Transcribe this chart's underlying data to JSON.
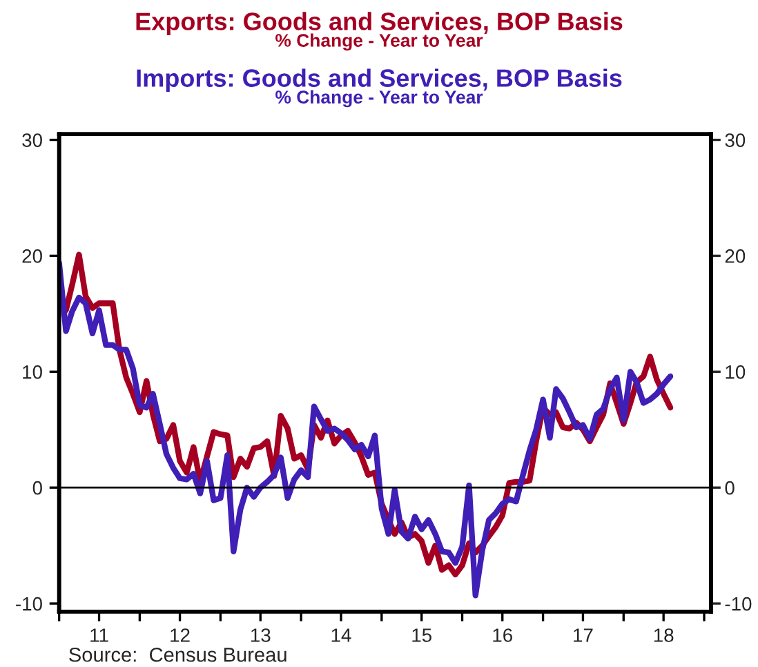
{
  "chart_data": {
    "type": "line",
    "annotations": [
      "% Change - Year to Year",
      "% Change - Year to Year",
      "Source:  Census Bureau"
    ],
    "x": [
      "2011-01",
      "2011-02",
      "2011-03",
      "2011-04",
      "2011-05",
      "2011-06",
      "2011-07",
      "2011-08",
      "2011-09",
      "2011-10",
      "2011-11",
      "2011-12",
      "2012-01",
      "2012-02",
      "2012-03",
      "2012-04",
      "2012-05",
      "2012-06",
      "2012-07",
      "2012-08",
      "2012-09",
      "2012-10",
      "2012-11",
      "2012-12",
      "2013-01",
      "2013-02",
      "2013-03",
      "2013-04",
      "2013-05",
      "2013-06",
      "2013-07",
      "2013-08",
      "2013-09",
      "2013-10",
      "2013-11",
      "2013-12",
      "2014-01",
      "2014-02",
      "2014-03",
      "2014-04",
      "2014-05",
      "2014-06",
      "2014-07",
      "2014-08",
      "2014-09",
      "2014-10",
      "2014-11",
      "2014-12",
      "2015-01",
      "2015-02",
      "2015-03",
      "2015-04",
      "2015-05",
      "2015-06",
      "2015-07",
      "2015-08",
      "2015-09",
      "2015-10",
      "2015-11",
      "2015-12",
      "2016-01",
      "2016-02",
      "2016-03",
      "2016-04",
      "2016-05",
      "2016-06",
      "2016-07",
      "2016-08",
      "2016-09",
      "2016-10",
      "2016-11",
      "2016-12",
      "2017-01",
      "2017-02",
      "2017-03",
      "2017-04",
      "2017-05",
      "2017-06",
      "2017-07",
      "2017-08",
      "2017-09",
      "2017-10",
      "2017-11",
      "2017-12",
      "2018-01",
      "2018-02",
      "2018-03",
      "2018-04",
      "2018-05",
      "2018-06",
      "2018-07",
      "2018-08"
    ],
    "series": [
      {
        "name": "Exports: Goods and Services, BOP Basis",
        "color": "#a50021",
        "values": [
          16.9,
          15.3,
          17.5,
          20.1,
          16.5,
          15.5,
          15.9,
          15.9,
          15.9,
          11.9,
          9.5,
          8.1,
          6.5,
          9.2,
          6.3,
          4.0,
          4.2,
          5.4,
          2.3,
          1.3,
          3.5,
          0.5,
          2.7,
          4.8,
          4.6,
          4.5,
          0.9,
          2.5,
          1.8,
          3.4,
          3.5,
          4.0,
          1.0,
          6.2,
          5.1,
          2.5,
          2.8,
          1.6,
          5.4,
          4.3,
          5.8,
          3.8,
          4.5,
          4.9,
          3.9,
          2.7,
          1.1,
          1.3,
          -1.4,
          -2.8,
          -4.0,
          -3.0,
          -4.3,
          -4.0,
          -4.6,
          -6.5,
          -5.0,
          -7.1,
          -6.7,
          -7.5,
          -6.7,
          -4.8,
          -5.6,
          -5.0,
          -4.2,
          -3.4,
          -2.4,
          0.4,
          0.5,
          0.5,
          0.6,
          4.0,
          6.9,
          6.3,
          6.5,
          5.2,
          5.1,
          5.6,
          5.0,
          4.0,
          5.2,
          6.3,
          9.0,
          7.3,
          5.5,
          7.3,
          9.1,
          9.6,
          11.3,
          9.3,
          8.1,
          6.9
        ]
      },
      {
        "name": "Imports: Goods and Services, BOP Basis",
        "color": "#3f1fb5",
        "values": [
          19.4,
          13.5,
          15.2,
          16.4,
          15.9,
          13.3,
          15.3,
          12.3,
          12.3,
          11.9,
          11.9,
          10.3,
          7.1,
          6.9,
          8.1,
          5.5,
          2.9,
          1.7,
          0.8,
          0.7,
          1.2,
          -0.5,
          2.3,
          -1.1,
          -0.9,
          2.8,
          -5.5,
          -1.9,
          0.0,
          -0.8,
          0.0,
          0.5,
          1.1,
          2.6,
          -0.9,
          0.7,
          1.5,
          0.9,
          7.0,
          5.9,
          4.9,
          5.1,
          4.7,
          4.1,
          3.3,
          3.7,
          2.7,
          4.5,
          -1.8,
          -4.0,
          -0.2,
          -3.8,
          -4.4,
          -2.5,
          -3.6,
          -2.8,
          -4.0,
          -5.5,
          -5.6,
          -6.5,
          -5.1,
          0.2,
          -9.3,
          -5.4,
          -2.8,
          -2.2,
          -1.4,
          -1.0,
          -1.2,
          1.0,
          3.2,
          5.0,
          7.6,
          4.3,
          8.5,
          7.7,
          6.5,
          5.2,
          5.4,
          4.2,
          6.3,
          6.8,
          8.5,
          9.5,
          5.8,
          10.0,
          9.1,
          7.3,
          7.6,
          8.1,
          8.9,
          9.6
        ]
      }
    ],
    "xlim": [
      "2011-01",
      "2019-02"
    ],
    "xticks": [
      {
        "value": "2011-01",
        "label": null
      },
      {
        "value": "2011-07",
        "label": "11"
      },
      {
        "value": "2012-01",
        "label": null
      },
      {
        "value": "2012-07",
        "label": "12"
      },
      {
        "value": "2013-01",
        "label": null
      },
      {
        "value": "2013-07",
        "label": "13"
      },
      {
        "value": "2014-01",
        "label": null
      },
      {
        "value": "2014-07",
        "label": "14"
      },
      {
        "value": "2015-01",
        "label": null
      },
      {
        "value": "2015-07",
        "label": "15"
      },
      {
        "value": "2016-01",
        "label": null
      },
      {
        "value": "2016-07",
        "label": "16"
      },
      {
        "value": "2017-01",
        "label": null
      },
      {
        "value": "2017-07",
        "label": "17"
      },
      {
        "value": "2018-01",
        "label": null
      },
      {
        "value": "2018-07",
        "label": "18"
      },
      {
        "value": "2019-01",
        "label": null
      }
    ],
    "ylim": [
      -10.7,
      30.5
    ],
    "yticks": [
      -10,
      0,
      10,
      20,
      30
    ],
    "y2lim": [
      -10.7,
      30.5
    ],
    "y2ticks": [
      -10,
      0,
      10,
      20,
      30
    ],
    "ref_lines": [
      {
        "axis": "y",
        "value": 0,
        "color": "#000000"
      }
    ],
    "grid": false,
    "legend": false,
    "marker": "none",
    "line_style": "solid"
  }
}
